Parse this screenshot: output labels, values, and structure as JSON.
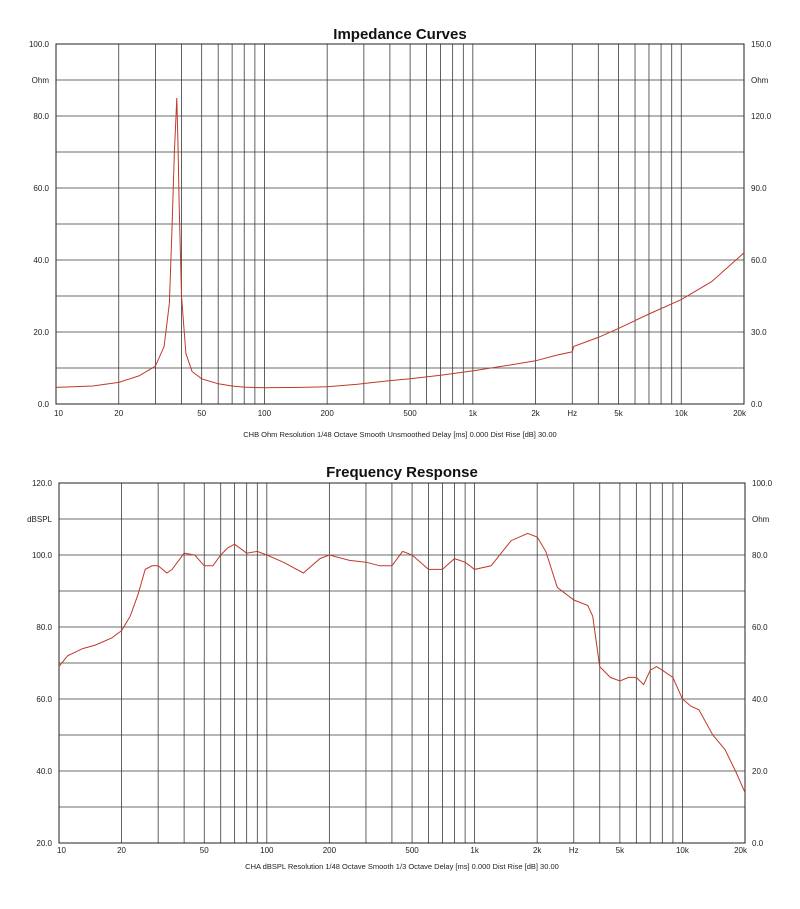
{
  "chart_data": [
    {
      "type": "line",
      "title": "Impedance Curves",
      "caption": "CHB Ohm Resolution 1/48 Octave Smooth Unsmoothed Delay [ms] 0.000 Dist Rise [dB] 30.00",
      "x_scale": "log",
      "xlim": [
        10,
        20000
      ],
      "x_tick_labels": [
        "10",
        "20",
        "50",
        "100",
        "200",
        "500",
        "1k",
        "2k",
        "Hz",
        "5k",
        "10k",
        "20k"
      ],
      "left_axis": {
        "unit": "Ohm",
        "ylim": [
          0,
          100
        ],
        "tick_labels": [
          "100.0",
          "80.0",
          "60.0",
          "40.0",
          "20.0",
          "0.0"
        ]
      },
      "right_axis": {
        "unit": "Ohm",
        "ylim": [
          0,
          150
        ],
        "tick_labels": [
          "150.0",
          "120.0",
          "90.0",
          "60.0",
          "30.0",
          "0.0"
        ]
      },
      "grid": true,
      "series": [
        {
          "color": "#c0392b",
          "x": [
            10,
            15,
            20,
            25,
            30,
            33,
            35,
            36,
            37,
            38,
            38.5,
            39,
            40,
            42,
            45,
            50,
            60,
            70,
            80,
            100,
            150,
            200,
            280,
            300,
            400,
            500,
            700,
            1000,
            1500,
            2000,
            2500,
            3000,
            3050,
            4000,
            5000,
            7000,
            10000,
            14000,
            20000
          ],
          "values": [
            4.6,
            5,
            6,
            7.8,
            10.5,
            16,
            28,
            48,
            70,
            85,
            72,
            55,
            30,
            14,
            9,
            7,
            5.6,
            5,
            4.7,
            4.5,
            4.6,
            4.8,
            5.5,
            5.7,
            6.5,
            7,
            8,
            9.2,
            10.8,
            12,
            13.5,
            14.5,
            16,
            18.5,
            21,
            25,
            29,
            34,
            42
          ]
        }
      ]
    },
    {
      "type": "line",
      "title": "Frequency Response",
      "caption": "CHA dBSPL Resolution 1/48 Octave Smooth 1/3 Octave Delay [ms] 0.000 Dist Rise [dB] 30.00",
      "x_scale": "log",
      "xlim": [
        10,
        20000
      ],
      "x_tick_labels": [
        "10",
        "20",
        "50",
        "100",
        "200",
        "500",
        "1k",
        "2k",
        "Hz",
        "5k",
        "10k",
        "20k"
      ],
      "left_axis": {
        "unit": "dBSPL",
        "ylim": [
          20,
          120
        ],
        "tick_labels": [
          "120.0",
          "100.0",
          "80.0",
          "60.0",
          "40.0",
          "20.0"
        ]
      },
      "right_axis": {
        "unit": "Ohm",
        "ylim": [
          0,
          100
        ],
        "tick_labels": [
          "100.0",
          "80.0",
          "60.0",
          "40.0",
          "20.0",
          "0.0"
        ]
      },
      "grid": true,
      "series": [
        {
          "color": "#c0392b",
          "x": [
            10,
            11,
            13,
            15,
            18,
            20,
            22,
            24,
            26,
            28,
            30,
            33,
            35,
            40,
            45,
            50,
            55,
            60,
            65,
            70,
            80,
            90,
            100,
            120,
            150,
            180,
            200,
            250,
            300,
            350,
            400,
            450,
            500,
            600,
            700,
            800,
            900,
            1000,
            1200,
            1500,
            1800,
            2000,
            2200,
            2500,
            3000,
            3500,
            3700,
            4000,
            4500,
            5000,
            5500,
            6000,
            6500,
            7000,
            7500,
            8000,
            9000,
            10000,
            11000,
            12000,
            14000,
            16000,
            18000,
            20000
          ],
          "values": [
            69,
            72,
            74,
            75,
            77,
            79,
            83,
            89,
            96,
            97,
            97,
            95,
            96,
            100.5,
            100,
            97,
            97,
            100,
            102,
            103,
            100.5,
            101,
            100,
            98,
            95,
            99,
            100,
            98.5,
            98,
            97,
            97,
            101,
            100,
            96,
            96,
            99,
            98,
            96,
            97,
            104,
            106,
            105,
            101,
            91,
            87.5,
            86,
            83,
            69,
            66,
            65,
            66,
            66,
            64,
            68,
            69,
            68,
            66,
            60,
            58,
            57,
            50,
            46,
            40,
            34
          ]
        }
      ]
    }
  ]
}
